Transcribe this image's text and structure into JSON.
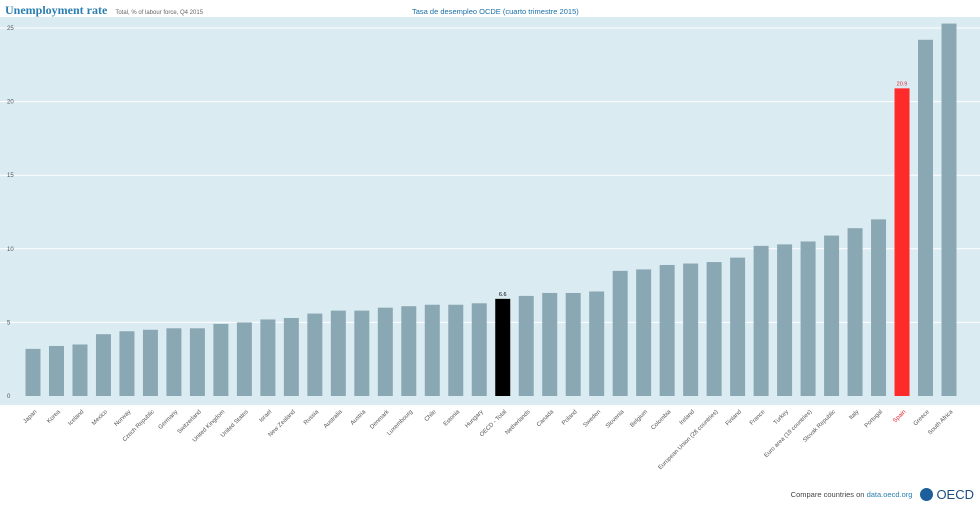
{
  "header": {
    "title": "Unemployment rate",
    "subtitle": "Total, % of labour force, Q4 2015",
    "right_title": "Tasa de desempleo OCDE (cuarto trimestre 2015)"
  },
  "footer": {
    "text": "Compare countries on",
    "link": "data.oecd.org",
    "logo": "OECD"
  },
  "chart_data": {
    "type": "bar",
    "ylim": [
      0,
      25
    ],
    "yticks": [
      0,
      5,
      10,
      15,
      20,
      25
    ],
    "grid": true,
    "categories": [
      "Japan",
      "Korea",
      "Iceland",
      "Mexico",
      "Norway",
      "Czech Republic",
      "Germany",
      "Switzerland",
      "United Kingdom",
      "United States",
      "Israel",
      "New Zealand",
      "Russia",
      "Australia",
      "Austria",
      "Denmark",
      "Luxembourg",
      "Chile",
      "Estonia",
      "Hungary",
      "OECD - Total",
      "Netherlands",
      "Canada",
      "Poland",
      "Sweden",
      "Slovenia",
      "Belgium",
      "Colombia",
      "Ireland",
      "European Union (28 countries)",
      "Finland",
      "France",
      "Turkey",
      "Euro area (19 countries)",
      "Slovak Republic",
      "Italy",
      "Portugal",
      "Spain",
      "Greece",
      "South Africa"
    ],
    "values": [
      3.2,
      3.4,
      3.5,
      4.2,
      4.4,
      4.5,
      4.6,
      4.6,
      4.9,
      5.0,
      5.2,
      5.3,
      5.6,
      5.8,
      5.8,
      6.0,
      6.1,
      6.2,
      6.2,
      6.3,
      6.6,
      6.8,
      7.0,
      7.0,
      7.1,
      8.5,
      8.6,
      8.9,
      9.0,
      9.1,
      9.4,
      10.2,
      10.3,
      10.5,
      10.9,
      11.4,
      12.0,
      20.9,
      24.2,
      25.3
    ],
    "highlights": {
      "OECD - Total": {
        "color": "#000000",
        "label": "6.6"
      },
      "Spain": {
        "color": "#ff2a2a",
        "label": "20.9"
      }
    },
    "colors": {
      "bar": "#8aa8b4",
      "background": "#dbebf2",
      "highlight_label_spain": "#e0262b"
    }
  }
}
